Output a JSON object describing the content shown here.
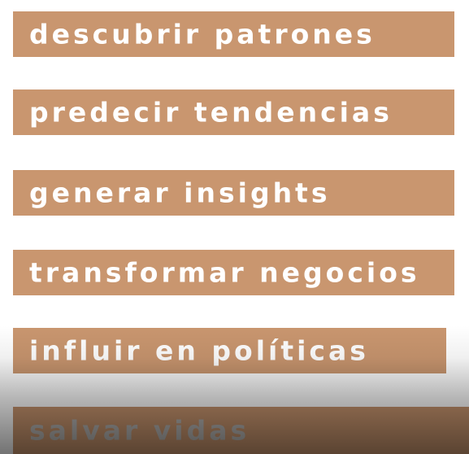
{
  "items": [
    {
      "label": "descubrir patrones"
    },
    {
      "label": "predecir tendencias"
    },
    {
      "label": "generar insights"
    },
    {
      "label": "transformar negocios"
    },
    {
      "label": "influir en políticas"
    },
    {
      "label": "salvar vidas"
    }
  ],
  "colors": {
    "bar": "#c9966f",
    "text": "#ffffff",
    "faded_text": "#b9b7b5",
    "background": "#ffffff"
  }
}
